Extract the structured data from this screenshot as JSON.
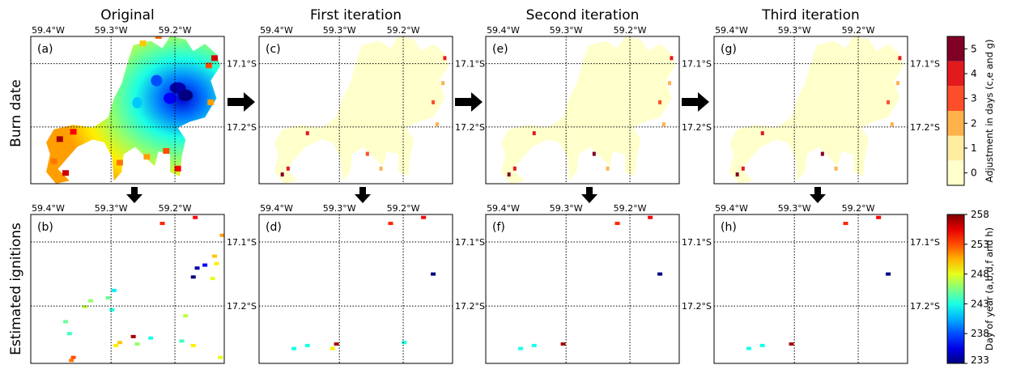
{
  "columns": [
    "Original",
    "First iteration",
    "Second iteration",
    "Third iteration"
  ],
  "rows": [
    "Burn date",
    "Estimated ignitions"
  ],
  "panel_letters": [
    [
      "(a)",
      "(c)",
      "(e)",
      "(g)"
    ],
    [
      "(b)",
      "(d)",
      "(f)",
      "(h)"
    ]
  ],
  "lon_ticks": [
    "59.4°W",
    "59.3°W",
    "59.2°W"
  ],
  "lat_ticks": [
    "17.1°S",
    "17.2°S"
  ],
  "colorbar_top": {
    "label": "Adjustment in days (c,e and g)",
    "ticks": [
      "0",
      "1",
      "2",
      "3",
      "4",
      "5"
    ],
    "colors": [
      "#ffffcc",
      "#ffeda0",
      "#feb24c",
      "#fc4e2a",
      "#e31a1c",
      "#800026"
    ]
  },
  "colorbar_bottom": {
    "label": "Day of year (a,b,d,f and h)",
    "ticks": [
      "233",
      "238",
      "243",
      "248",
      "253",
      "258"
    ],
    "range": [
      233,
      258
    ],
    "colormap": "jet"
  },
  "chart_data": [
    {
      "type": "heatmap",
      "panel": "(a)",
      "row": "Burn date",
      "column": "Original",
      "value_kind": "day of year",
      "range": [
        233,
        258
      ],
      "x_ticks": [
        "59.4°W",
        "59.3°W",
        "59.2°W"
      ],
      "y_ticks": [
        "17.1°S",
        "17.2°S"
      ],
      "description_values": "burn-scar polygon; east-centre lowest (~233-240), west/centre mid (~243-247), rims highest (~250-258)"
    },
    {
      "type": "heatmap",
      "panel": "(c)",
      "row": "Burn date",
      "column": "First iteration",
      "value_kind": "adjustment in days",
      "range": [
        0,
        5
      ],
      "dominant_value": 0,
      "nonzero_pixels": [
        [
          0.96,
          0.15,
          4
        ],
        [
          0.95,
          0.32,
          2
        ],
        [
          0.9,
          0.45,
          3
        ],
        [
          0.92,
          0.6,
          2
        ],
        [
          0.25,
          0.66,
          4
        ],
        [
          0.12,
          0.94,
          5
        ],
        [
          0.15,
          0.9,
          4
        ],
        [
          0.56,
          0.8,
          3
        ],
        [
          0.63,
          0.9,
          2
        ]
      ]
    },
    {
      "type": "heatmap",
      "panel": "(e)",
      "row": "Burn date",
      "column": "Second iteration",
      "value_kind": "adjustment in days",
      "range": [
        0,
        5
      ],
      "dominant_value": 0,
      "nonzero_pixels": [
        [
          0.96,
          0.15,
          4
        ],
        [
          0.95,
          0.32,
          2
        ],
        [
          0.9,
          0.45,
          3
        ],
        [
          0.92,
          0.6,
          2
        ],
        [
          0.25,
          0.66,
          4
        ],
        [
          0.12,
          0.94,
          5
        ],
        [
          0.15,
          0.9,
          4
        ],
        [
          0.56,
          0.8,
          5
        ],
        [
          0.63,
          0.9,
          2
        ]
      ]
    },
    {
      "type": "heatmap",
      "panel": "(g)",
      "row": "Burn date",
      "column": "Third iteration",
      "value_kind": "adjustment in days",
      "range": [
        0,
        5
      ],
      "dominant_value": 0,
      "nonzero_pixels": [
        [
          0.96,
          0.15,
          4
        ],
        [
          0.95,
          0.32,
          2
        ],
        [
          0.9,
          0.45,
          3
        ],
        [
          0.92,
          0.6,
          2
        ],
        [
          0.25,
          0.66,
          4
        ],
        [
          0.12,
          0.94,
          5
        ],
        [
          0.15,
          0.9,
          4
        ],
        [
          0.56,
          0.8,
          5
        ],
        [
          0.63,
          0.9,
          2
        ]
      ]
    },
    {
      "type": "scatter",
      "panel": "(b)",
      "row": "Estimated ignitions",
      "column": "Original",
      "value_kind": "day of year",
      "range": [
        233,
        258
      ],
      "points": [
        [
          0.68,
          0.06,
          254
        ],
        [
          0.85,
          0.02,
          255
        ],
        [
          0.99,
          0.14,
          251
        ],
        [
          0.86,
          0.36,
          234
        ],
        [
          0.84,
          0.42,
          233
        ],
        [
          0.9,
          0.34,
          236
        ],
        [
          0.95,
          0.28,
          250
        ],
        [
          0.96,
          0.33,
          249
        ],
        [
          0.94,
          0.43,
          248
        ],
        [
          0.31,
          0.58,
          246
        ],
        [
          0.4,
          0.56,
          245
        ],
        [
          0.28,
          0.62,
          247
        ],
        [
          0.43,
          0.51,
          242
        ],
        [
          0.42,
          0.64,
          243
        ],
        [
          0.18,
          0.72,
          245
        ],
        [
          0.2,
          0.8,
          244
        ],
        [
          0.53,
          0.82,
          257
        ],
        [
          0.55,
          0.87,
          246
        ],
        [
          0.62,
          0.83,
          243
        ],
        [
          0.78,
          0.85,
          244
        ],
        [
          0.84,
          0.88,
          249
        ],
        [
          0.44,
          0.88,
          249
        ],
        [
          0.46,
          0.86,
          250
        ],
        [
          0.22,
          0.96,
          253
        ],
        [
          0.21,
          0.98,
          252
        ],
        [
          0.8,
          0.68,
          247
        ],
        [
          0.98,
          0.96,
          248
        ]
      ]
    },
    {
      "type": "scatter",
      "panel": "(d)",
      "row": "Estimated ignitions",
      "column": "First iteration",
      "value_kind": "day of year",
      "range": [
        233,
        258
      ],
      "points": [
        [
          0.68,
          0.06,
          254
        ],
        [
          0.85,
          0.02,
          255
        ],
        [
          0.9,
          0.4,
          233
        ],
        [
          0.18,
          0.9,
          243
        ],
        [
          0.25,
          0.88,
          243
        ],
        [
          0.4,
          0.87,
          257
        ],
        [
          0.38,
          0.9,
          249
        ],
        [
          0.75,
          0.86,
          243
        ]
      ]
    },
    {
      "type": "scatter",
      "panel": "(f)",
      "row": "Estimated ignitions",
      "column": "Second iteration",
      "value_kind": "day of year",
      "range": [
        233,
        258
      ],
      "points": [
        [
          0.68,
          0.06,
          254
        ],
        [
          0.85,
          0.02,
          255
        ],
        [
          0.9,
          0.4,
          233
        ],
        [
          0.18,
          0.9,
          243
        ],
        [
          0.25,
          0.88,
          243
        ],
        [
          0.4,
          0.87,
          257
        ]
      ]
    },
    {
      "type": "scatter",
      "panel": "(h)",
      "row": "Estimated ignitions",
      "column": "Third iteration",
      "value_kind": "day of year",
      "range": [
        233,
        258
      ],
      "points": [
        [
          0.68,
          0.06,
          254
        ],
        [
          0.85,
          0.02,
          255
        ],
        [
          0.9,
          0.4,
          233
        ],
        [
          0.18,
          0.9,
          243
        ],
        [
          0.25,
          0.88,
          243
        ],
        [
          0.4,
          0.87,
          257
        ]
      ]
    }
  ]
}
